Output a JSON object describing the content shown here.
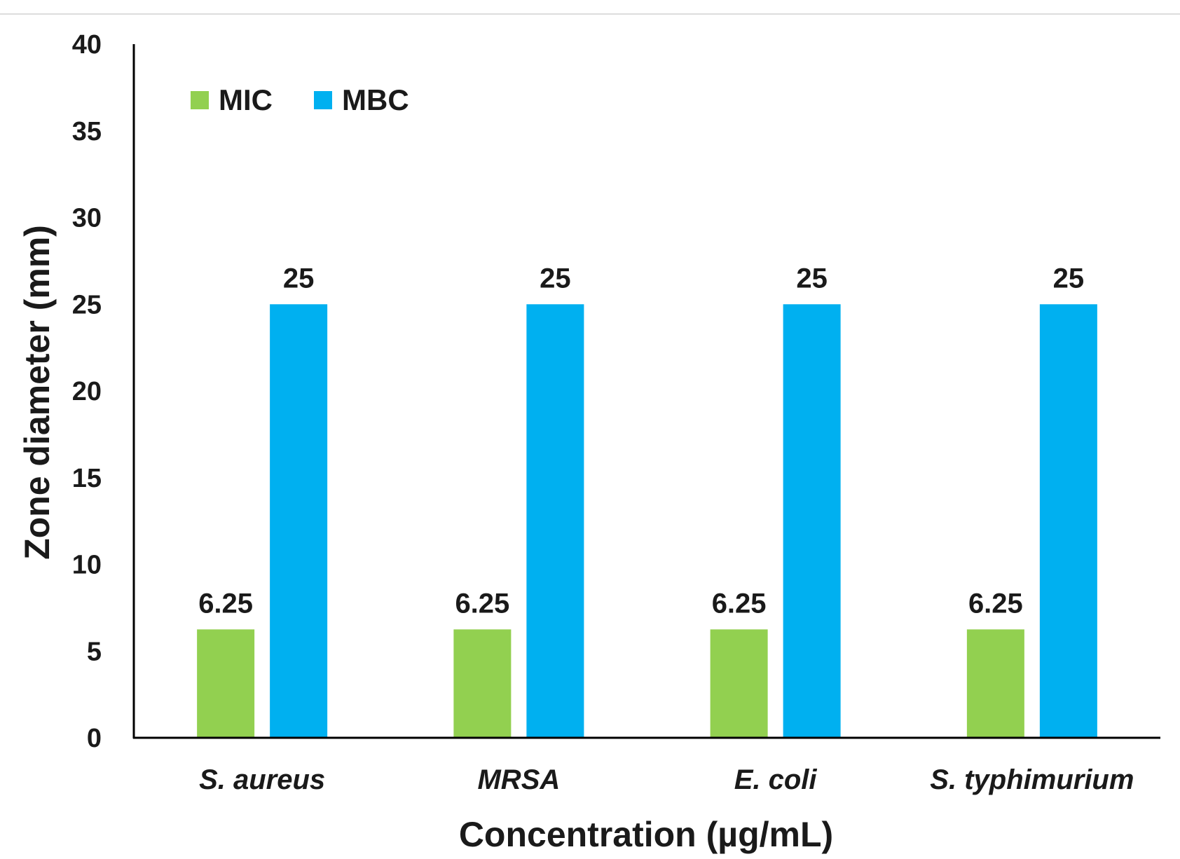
{
  "chart_data": {
    "type": "bar",
    "title": "",
    "xlabel": "Concentration (µg/mL)",
    "ylabel": "Zone diameter (mm)",
    "categories": [
      "S. aureus",
      "MRSA",
      "E. coli",
      "S. typhimurium"
    ],
    "series": [
      {
        "name": "MIC",
        "color": "#92d050",
        "values": [
          6.25,
          6.25,
          6.25,
          6.25
        ],
        "labels": [
          "6.25",
          "6.25",
          "6.25",
          "6.25"
        ]
      },
      {
        "name": "MBC",
        "color": "#00b0f0",
        "values": [
          25,
          25,
          25,
          25
        ],
        "labels": [
          "25",
          "25",
          "25",
          "25"
        ]
      }
    ],
    "ylim": [
      0,
      40
    ],
    "yticks": [
      0,
      5,
      10,
      15,
      20,
      25,
      30,
      35,
      40
    ],
    "grid": false,
    "legend_position": "top-left"
  }
}
